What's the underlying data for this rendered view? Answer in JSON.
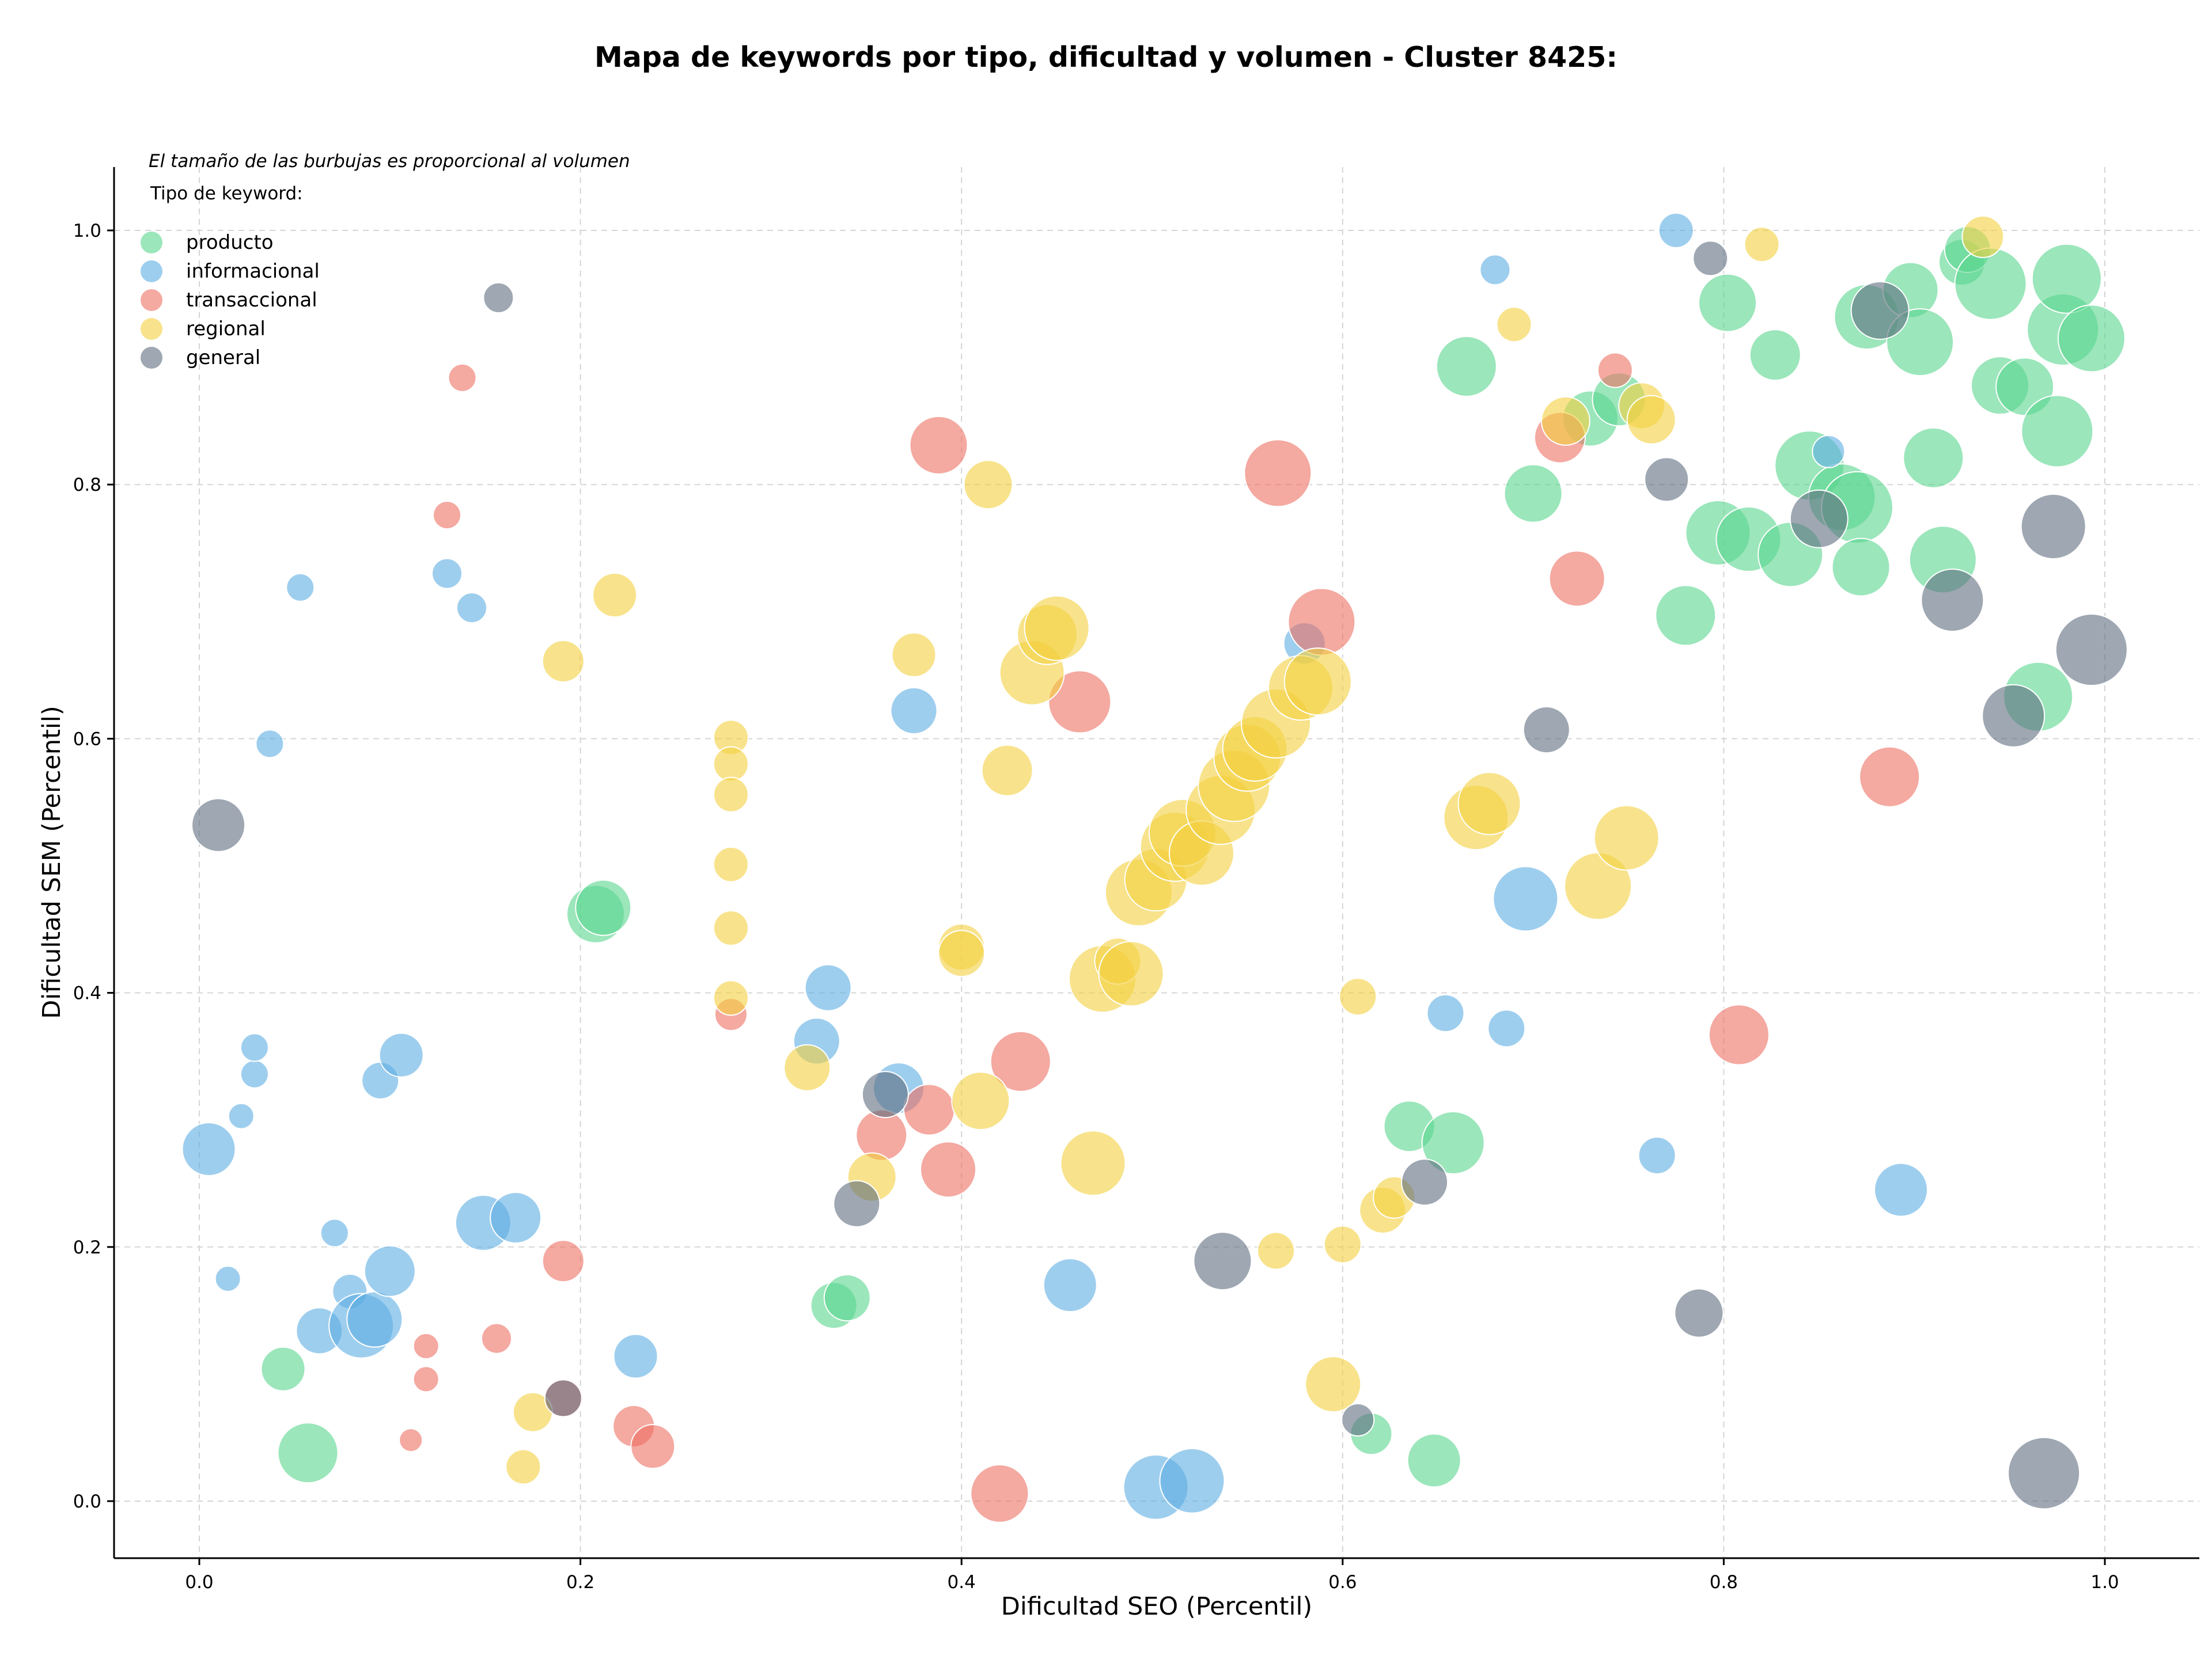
{
  "colors": {
    "producto": "#58d68d",
    "informacional": "#5dade2",
    "transaccional": "#ec7063",
    "regional": "#f4d03f",
    "general": "#5d6d7e",
    "axis": "#000000",
    "grid": "#d5d5d5"
  },
  "chart_data": {
    "type": "scatter",
    "title": "Mapa de keywords por tipo, dificultad y volumen - Cluster 8425:",
    "xlabel": "Dificultad SEO (Percentil)",
    "ylabel": "Dificultad SEM (Percentil)",
    "annotation": "El tamaño de las burbujas es proporcional al volumen",
    "legend_title": "Tipo de keyword:",
    "legend_placement": "top-left",
    "grid": true,
    "xlim": [
      -0.045,
      1.05
    ],
    "ylim": [
      -0.045,
      1.05
    ],
    "xticks": [
      0.0,
      0.2,
      0.4,
      0.6,
      0.8,
      1.0
    ],
    "yticks": [
      0.0,
      0.2,
      0.4,
      0.6,
      0.8,
      1.0
    ],
    "xtick_labels": [
      "0.0",
      "0.2",
      "0.4",
      "0.6",
      "0.8",
      "1.0"
    ],
    "ytick_labels": [
      "0.0",
      "0.2",
      "0.4",
      "0.6",
      "0.8",
      "1.0"
    ],
    "size_encoding": "volume",
    "series": [
      {
        "name": "producto",
        "color": "#58d68d",
        "points": [
          [
            0.057,
            0.038,
            52
          ],
          [
            0.044,
            0.104,
            38
          ],
          [
            0.208,
            0.462,
            50
          ],
          [
            0.212,
            0.467,
            48
          ],
          [
            0.333,
            0.154,
            40
          ],
          [
            0.34,
            0.16,
            40
          ],
          [
            0.615,
            0.053,
            36
          ],
          [
            0.648,
            0.032,
            46
          ],
          [
            0.635,
            0.295,
            44
          ],
          [
            0.658,
            0.282,
            54
          ],
          [
            0.665,
            0.893,
            52
          ],
          [
            0.7,
            0.793,
            50
          ],
          [
            0.73,
            0.852,
            48
          ],
          [
            0.745,
            0.867,
            46
          ],
          [
            0.78,
            0.697,
            52
          ],
          [
            0.797,
            0.762,
            56
          ],
          [
            0.802,
            0.943,
            50
          ],
          [
            0.813,
            0.757,
            56
          ],
          [
            0.827,
            0.902,
            44
          ],
          [
            0.835,
            0.745,
            56
          ],
          [
            0.845,
            0.815,
            60
          ],
          [
            0.862,
            0.79,
            58
          ],
          [
            0.87,
            0.782,
            62
          ],
          [
            0.872,
            0.735,
            50
          ],
          [
            0.875,
            0.932,
            56
          ],
          [
            0.898,
            0.953,
            48
          ],
          [
            0.903,
            0.912,
            58
          ],
          [
            0.91,
            0.821,
            52
          ],
          [
            0.915,
            0.741,
            58
          ],
          [
            0.925,
            0.975,
            40
          ],
          [
            0.928,
            0.985,
            40
          ],
          [
            0.94,
            0.958,
            62
          ],
          [
            0.945,
            0.878,
            50
          ],
          [
            0.958,
            0.877,
            50
          ],
          [
            0.965,
            0.633,
            60
          ],
          [
            0.975,
            0.842,
            62
          ],
          [
            0.978,
            0.922,
            62
          ],
          [
            0.98,
            0.962,
            60
          ],
          [
            0.993,
            0.915,
            58
          ]
        ]
      },
      {
        "name": "informacional",
        "color": "#5dade2",
        "points": [
          [
            0.005,
            0.277,
            46
          ],
          [
            0.015,
            0.175,
            22
          ],
          [
            0.022,
            0.303,
            22
          ],
          [
            0.029,
            0.336,
            24
          ],
          [
            0.029,
            0.357,
            24
          ],
          [
            0.037,
            0.596,
            24
          ],
          [
            0.053,
            0.719,
            24
          ],
          [
            0.063,
            0.134,
            40
          ],
          [
            0.071,
            0.211,
            24
          ],
          [
            0.079,
            0.165,
            30
          ],
          [
            0.085,
            0.138,
            56
          ],
          [
            0.092,
            0.143,
            48
          ],
          [
            0.095,
            0.331,
            32
          ],
          [
            0.1,
            0.181,
            44
          ],
          [
            0.106,
            0.351,
            38
          ],
          [
            0.13,
            0.73,
            26
          ],
          [
            0.143,
            0.703,
            26
          ],
          [
            0.149,
            0.219,
            48
          ],
          [
            0.166,
            0.223,
            44
          ],
          [
            0.229,
            0.114,
            38
          ],
          [
            0.324,
            0.362,
            40
          ],
          [
            0.33,
            0.404,
            40
          ],
          [
            0.367,
            0.325,
            44
          ],
          [
            0.375,
            0.622,
            40
          ],
          [
            0.457,
            0.17,
            46
          ],
          [
            0.502,
            0.011,
            56
          ],
          [
            0.521,
            0.016,
            56
          ],
          [
            0.58,
            0.675,
            36
          ],
          [
            0.654,
            0.384,
            32
          ],
          [
            0.68,
            0.969,
            26
          ],
          [
            0.686,
            0.372,
            32
          ],
          [
            0.696,
            0.474,
            56
          ],
          [
            0.765,
            0.272,
            32
          ],
          [
            0.775,
            1.0,
            30
          ],
          [
            0.855,
            0.826,
            28
          ],
          [
            0.893,
            0.245,
            46
          ]
        ]
      },
      {
        "name": "transaccional",
        "color": "#ec7063",
        "points": [
          [
            0.111,
            0.048,
            20
          ],
          [
            0.119,
            0.096,
            22
          ],
          [
            0.119,
            0.122,
            22
          ],
          [
            0.13,
            0.776,
            24
          ],
          [
            0.138,
            0.884,
            24
          ],
          [
            0.156,
            0.128,
            26
          ],
          [
            0.191,
            0.189,
            36
          ],
          [
            0.191,
            0.081,
            34
          ],
          [
            0.228,
            0.059,
            36
          ],
          [
            0.238,
            0.043,
            38
          ],
          [
            0.279,
            0.383,
            28
          ],
          [
            0.358,
            0.288,
            44
          ],
          [
            0.383,
            0.308,
            44
          ],
          [
            0.388,
            0.831,
            50
          ],
          [
            0.393,
            0.261,
            48
          ],
          [
            0.42,
            0.006,
            50
          ],
          [
            0.431,
            0.346,
            52
          ],
          [
            0.462,
            0.629,
            54
          ],
          [
            0.566,
            0.809,
            58
          ],
          [
            0.589,
            0.692,
            58
          ],
          [
            0.714,
            0.837,
            44
          ],
          [
            0.723,
            0.726,
            48
          ],
          [
            0.743,
            0.89,
            30
          ],
          [
            0.808,
            0.367,
            52
          ],
          [
            0.887,
            0.57,
            52
          ]
        ]
      },
      {
        "name": "regional",
        "color": "#f4d03f",
        "points": [
          [
            0.17,
            0.027,
            30
          ],
          [
            0.175,
            0.07,
            34
          ],
          [
            0.191,
            0.661,
            36
          ],
          [
            0.218,
            0.713,
            38
          ],
          [
            0.279,
            0.601,
            30
          ],
          [
            0.279,
            0.58,
            30
          ],
          [
            0.279,
            0.556,
            30
          ],
          [
            0.279,
            0.501,
            30
          ],
          [
            0.279,
            0.451,
            30
          ],
          [
            0.279,
            0.396,
            30
          ],
          [
            0.319,
            0.341,
            40
          ],
          [
            0.353,
            0.255,
            42
          ],
          [
            0.375,
            0.666,
            38
          ],
          [
            0.4,
            0.436,
            40
          ],
          [
            0.4,
            0.431,
            40
          ],
          [
            0.41,
            0.315,
            50
          ],
          [
            0.414,
            0.8,
            42
          ],
          [
            0.424,
            0.575,
            44
          ],
          [
            0.437,
            0.652,
            56
          ],
          [
            0.445,
            0.682,
            52
          ],
          [
            0.45,
            0.687,
            56
          ],
          [
            0.469,
            0.266,
            56
          ],
          [
            0.474,
            0.411,
            58
          ],
          [
            0.482,
            0.425,
            40
          ],
          [
            0.489,
            0.415,
            56
          ],
          [
            0.493,
            0.479,
            58
          ],
          [
            0.502,
            0.489,
            54
          ],
          [
            0.512,
            0.515,
            60
          ],
          [
            0.516,
            0.526,
            58
          ],
          [
            0.526,
            0.51,
            56
          ],
          [
            0.536,
            0.544,
            60
          ],
          [
            0.543,
            0.563,
            62
          ],
          [
            0.55,
            0.585,
            58
          ],
          [
            0.554,
            0.592,
            56
          ],
          [
            0.565,
            0.612,
            60
          ],
          [
            0.578,
            0.64,
            56
          ],
          [
            0.587,
            0.645,
            58
          ],
          [
            0.595,
            0.092,
            48
          ],
          [
            0.6,
            0.202,
            32
          ],
          [
            0.608,
            0.397,
            32
          ],
          [
            0.565,
            0.197,
            32
          ],
          [
            0.621,
            0.229,
            40
          ],
          [
            0.627,
            0.239,
            36
          ],
          [
            0.67,
            0.538,
            56
          ],
          [
            0.677,
            0.549,
            54
          ],
          [
            0.69,
            0.926,
            30
          ],
          [
            0.717,
            0.85,
            42
          ],
          [
            0.734,
            0.484,
            58
          ],
          [
            0.749,
            0.522,
            56
          ],
          [
            0.757,
            0.862,
            40
          ],
          [
            0.762,
            0.851,
            42
          ],
          [
            0.82,
            0.989,
            30
          ],
          [
            0.936,
            0.995,
            36
          ]
        ]
      },
      {
        "name": "general",
        "color": "#5d6d7e",
        "points": [
          [
            0.01,
            0.532,
            46
          ],
          [
            0.157,
            0.947,
            26
          ],
          [
            0.191,
            0.081,
            32
          ],
          [
            0.345,
            0.234,
            40
          ],
          [
            0.36,
            0.32,
            40
          ],
          [
            0.537,
            0.189,
            50
          ],
          [
            0.608,
            0.064,
            28
          ],
          [
            0.643,
            0.251,
            40
          ],
          [
            0.707,
            0.607,
            40
          ],
          [
            0.77,
            0.804,
            38
          ],
          [
            0.787,
            0.148,
            42
          ],
          [
            0.793,
            0.978,
            30
          ],
          [
            0.85,
            0.773,
            50
          ],
          [
            0.882,
            0.937,
            50
          ],
          [
            0.92,
            0.709,
            54
          ],
          [
            0.952,
            0.618,
            54
          ],
          [
            0.968,
            0.022,
            62
          ],
          [
            0.973,
            0.767,
            56
          ],
          [
            0.993,
            0.67,
            62
          ]
        ]
      }
    ]
  }
}
